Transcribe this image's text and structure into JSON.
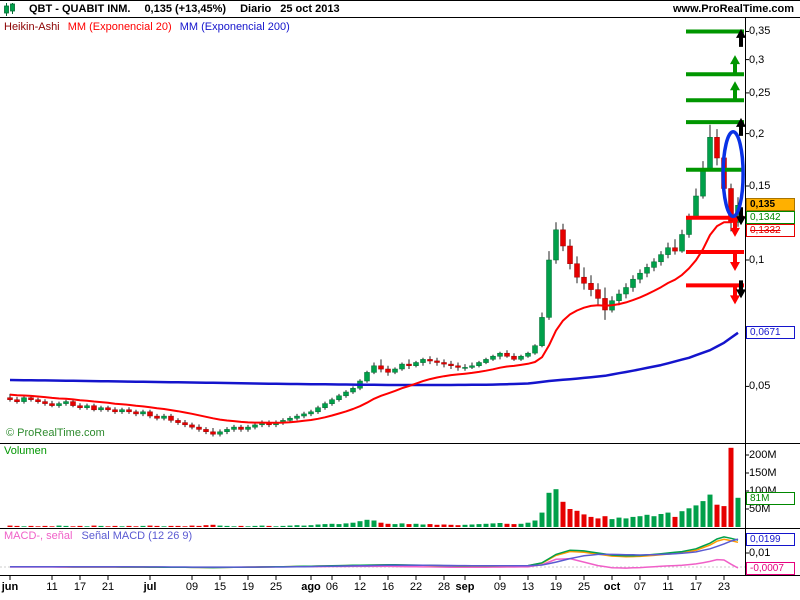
{
  "header": {
    "symbol": "QBT - QUABIT INM.",
    "price_change": "0,135 (+13,45%)",
    "period": "Diario",
    "date": "25 oct 2013",
    "site": "www.ProRealTime.com"
  },
  "main_legend": {
    "heikin": "Heikin-Ashi",
    "mm20": "MM (Exponencial 20)",
    "mm200": "MM (Exponencial 200)"
  },
  "watermark": "© ProRealTime.com",
  "volume_label": "Volumen",
  "macd_legend": {
    "part1": "MACD-, señal",
    "part2": "Señal MACD (12 26 9)"
  },
  "colors": {
    "up": "#00a04a",
    "up_border": "#006b31",
    "down": "#e60000",
    "down_border": "#9e0000",
    "wick": "#222222",
    "ema20": "#ff0000",
    "ema200": "#1414cc",
    "green_level": "#009600",
    "red_level": "#ff0000",
    "ellipse": "#0a32e6",
    "macd_pink": "#f060c8",
    "macd_blue": "#5a5ad2",
    "macd_green": "#00a04a",
    "macd_orange": "#ff9900"
  },
  "chart_data": {
    "type": "candlestick",
    "style": "Heikin-Ashi",
    "symbol": "QBT",
    "title": "QUABIT INM.",
    "timeframe": "Diario",
    "last_date": "25 oct 2013",
    "last_price": 0.135,
    "change_pct": "+13,45%",
    "price_scale": "log",
    "price_ticks": [
      {
        "label": "0,35",
        "v": 0.35
      },
      {
        "label": "0,3",
        "v": 0.3
      },
      {
        "label": "0,25",
        "v": 0.25
      },
      {
        "label": "0,2",
        "v": 0.2
      },
      {
        "label": "0,15",
        "v": 0.15
      },
      {
        "label": "0,1",
        "v": 0.1
      },
      {
        "label": "0,05",
        "v": 0.05
      }
    ],
    "x_ticks": [
      {
        "i": 1,
        "label": "jun",
        "bold": true
      },
      {
        "i": 7,
        "label": "11"
      },
      {
        "i": 11,
        "label": "17"
      },
      {
        "i": 15,
        "label": "21"
      },
      {
        "i": 21,
        "label": "jul",
        "bold": true
      },
      {
        "i": 27,
        "label": "09"
      },
      {
        "i": 31,
        "label": "15"
      },
      {
        "i": 35,
        "label": "19"
      },
      {
        "i": 39,
        "label": "25"
      },
      {
        "i": 44,
        "label": "ago",
        "bold": true
      },
      {
        "i": 47,
        "label": "06"
      },
      {
        "i": 51,
        "label": "12"
      },
      {
        "i": 55,
        "label": "16"
      },
      {
        "i": 59,
        "label": "22"
      },
      {
        "i": 63,
        "label": "28"
      },
      {
        "i": 66,
        "label": "sep",
        "bold": true
      },
      {
        "i": 71,
        "label": "09"
      },
      {
        "i": 75,
        "label": "13"
      },
      {
        "i": 79,
        "label": "19"
      },
      {
        "i": 83,
        "label": "25"
      },
      {
        "i": 87,
        "label": "oct",
        "bold": true
      },
      {
        "i": 91,
        "label": "07"
      },
      {
        "i": 95,
        "label": "11"
      },
      {
        "i": 99,
        "label": "17"
      },
      {
        "i": 103,
        "label": "23"
      }
    ],
    "candles": [
      [
        0.047,
        0.048,
        0.046,
        0.0465
      ],
      [
        0.0465,
        0.0472,
        0.0455,
        0.046
      ],
      [
        0.046,
        0.0475,
        0.0455,
        0.047
      ],
      [
        0.047,
        0.0476,
        0.046,
        0.0465
      ],
      [
        0.0465,
        0.047,
        0.0455,
        0.046
      ],
      [
        0.046,
        0.0466,
        0.045,
        0.0455
      ],
      [
        0.0455,
        0.0462,
        0.0446,
        0.045
      ],
      [
        0.045,
        0.046,
        0.0445,
        0.0455
      ],
      [
        0.0455,
        0.0465,
        0.045,
        0.046
      ],
      [
        0.046,
        0.0465,
        0.0446,
        0.045
      ],
      [
        0.045,
        0.0456,
        0.044,
        0.0445
      ],
      [
        0.0445,
        0.0455,
        0.044,
        0.045
      ],
      [
        0.045,
        0.0455,
        0.0436,
        0.044
      ],
      [
        0.044,
        0.045,
        0.0435,
        0.0445
      ],
      [
        0.0445,
        0.045,
        0.0435,
        0.044
      ],
      [
        0.044,
        0.0446,
        0.043,
        0.0435
      ],
      [
        0.0435,
        0.0445,
        0.043,
        0.044
      ],
      [
        0.044,
        0.0446,
        0.043,
        0.0435
      ],
      [
        0.0435,
        0.044,
        0.0425,
        0.043
      ],
      [
        0.043,
        0.044,
        0.0425,
        0.0435
      ],
      [
        0.0435,
        0.044,
        0.042,
        0.0425
      ],
      [
        0.0425,
        0.043,
        0.0415,
        0.042
      ],
      [
        0.042,
        0.043,
        0.0415,
        0.0425
      ],
      [
        0.0425,
        0.043,
        0.041,
        0.0415
      ],
      [
        0.0415,
        0.042,
        0.0405,
        0.041
      ],
      [
        0.041,
        0.0416,
        0.04,
        0.0405
      ],
      [
        0.0405,
        0.041,
        0.0395,
        0.04
      ],
      [
        0.04,
        0.0406,
        0.039,
        0.0395
      ],
      [
        0.0395,
        0.04,
        0.0385,
        0.039
      ],
      [
        0.039,
        0.0398,
        0.038,
        0.0385
      ],
      [
        0.0385,
        0.0395,
        0.038,
        0.039
      ],
      [
        0.039,
        0.04,
        0.0385,
        0.0395
      ],
      [
        0.0395,
        0.0405,
        0.039,
        0.04
      ],
      [
        0.04,
        0.0405,
        0.039,
        0.0395
      ],
      [
        0.0395,
        0.0405,
        0.039,
        0.04
      ],
      [
        0.04,
        0.041,
        0.0395,
        0.0405
      ],
      [
        0.0405,
        0.0415,
        0.04,
        0.041
      ],
      [
        0.041,
        0.0415,
        0.04,
        0.0405
      ],
      [
        0.0405,
        0.0415,
        0.04,
        0.041
      ],
      [
        0.041,
        0.042,
        0.0405,
        0.0415
      ],
      [
        0.0415,
        0.0425,
        0.041,
        0.042
      ],
      [
        0.042,
        0.043,
        0.0415,
        0.0425
      ],
      [
        0.0425,
        0.0435,
        0.042,
        0.043
      ],
      [
        0.043,
        0.044,
        0.0425,
        0.0435
      ],
      [
        0.0435,
        0.045,
        0.043,
        0.0445
      ],
      [
        0.0445,
        0.046,
        0.044,
        0.0455
      ],
      [
        0.0455,
        0.047,
        0.045,
        0.0465
      ],
      [
        0.0465,
        0.048,
        0.046,
        0.0475
      ],
      [
        0.0475,
        0.049,
        0.047,
        0.0485
      ],
      [
        0.0485,
        0.05,
        0.048,
        0.0495
      ],
      [
        0.0495,
        0.052,
        0.049,
        0.0515
      ],
      [
        0.0515,
        0.0545,
        0.051,
        0.054
      ],
      [
        0.054,
        0.057,
        0.0535,
        0.056
      ],
      [
        0.056,
        0.058,
        0.054,
        0.055
      ],
      [
        0.055,
        0.056,
        0.053,
        0.054
      ],
      [
        0.054,
        0.0555,
        0.0535,
        0.055
      ],
      [
        0.055,
        0.057,
        0.0545,
        0.0565
      ],
      [
        0.0565,
        0.058,
        0.055,
        0.056
      ],
      [
        0.056,
        0.0575,
        0.0555,
        0.057
      ],
      [
        0.057,
        0.0585,
        0.056,
        0.058
      ],
      [
        0.058,
        0.059,
        0.0565,
        0.0575
      ],
      [
        0.0575,
        0.0585,
        0.056,
        0.057
      ],
      [
        0.057,
        0.058,
        0.0555,
        0.0565
      ],
      [
        0.0565,
        0.0575,
        0.055,
        0.056
      ],
      [
        0.056,
        0.057,
        0.0545,
        0.0555
      ],
      [
        0.0555,
        0.0565,
        0.0545,
        0.0555
      ],
      [
        0.0555,
        0.057,
        0.055,
        0.056
      ],
      [
        0.056,
        0.0575,
        0.0555,
        0.057
      ],
      [
        0.057,
        0.0585,
        0.0565,
        0.058
      ],
      [
        0.058,
        0.0595,
        0.0575,
        0.059
      ],
      [
        0.059,
        0.0605,
        0.058,
        0.06
      ],
      [
        0.06,
        0.061,
        0.0585,
        0.059
      ],
      [
        0.059,
        0.06,
        0.0575,
        0.058
      ],
      [
        0.058,
        0.0595,
        0.0575,
        0.059
      ],
      [
        0.059,
        0.0605,
        0.0585,
        0.06
      ],
      [
        0.06,
        0.063,
        0.0595,
        0.0625
      ],
      [
        0.0625,
        0.075,
        0.062,
        0.073
      ],
      [
        0.073,
        0.105,
        0.072,
        0.1
      ],
      [
        0.1,
        0.123,
        0.098,
        0.118
      ],
      [
        0.118,
        0.122,
        0.105,
        0.108
      ],
      [
        0.108,
        0.112,
        0.095,
        0.098
      ],
      [
        0.098,
        0.102,
        0.088,
        0.091
      ],
      [
        0.091,
        0.096,
        0.085,
        0.088
      ],
      [
        0.088,
        0.092,
        0.082,
        0.085
      ],
      [
        0.085,
        0.088,
        0.078,
        0.081
      ],
      [
        0.081,
        0.086,
        0.072,
        0.076
      ],
      [
        0.076,
        0.082,
        0.075,
        0.08
      ],
      [
        0.08,
        0.085,
        0.078,
        0.083
      ],
      [
        0.083,
        0.088,
        0.081,
        0.086
      ],
      [
        0.086,
        0.092,
        0.084,
        0.09
      ],
      [
        0.09,
        0.095,
        0.088,
        0.093
      ],
      [
        0.093,
        0.098,
        0.091,
        0.096
      ],
      [
        0.096,
        0.101,
        0.094,
        0.099
      ],
      [
        0.099,
        0.105,
        0.097,
        0.103
      ],
      [
        0.103,
        0.11,
        0.101,
        0.107
      ],
      [
        0.107,
        0.112,
        0.103,
        0.105
      ],
      [
        0.105,
        0.118,
        0.104,
        0.115
      ],
      [
        0.115,
        0.129,
        0.113,
        0.127
      ],
      [
        0.127,
        0.148,
        0.125,
        0.142
      ],
      [
        0.142,
        0.172,
        0.14,
        0.165
      ],
      [
        0.165,
        0.21,
        0.163,
        0.196
      ],
      [
        0.196,
        0.205,
        0.168,
        0.175
      ],
      [
        0.175,
        0.18,
        0.14,
        0.148
      ],
      [
        0.148,
        0.152,
        0.117,
        0.123
      ],
      [
        0.123,
        0.141,
        0.12,
        0.135
      ]
    ],
    "volumes_millions": [
      4,
      3,
      2,
      3,
      2,
      3,
      2,
      4,
      3,
      2,
      3,
      2,
      4,
      3,
      2,
      3,
      2,
      3,
      2,
      3,
      4,
      3,
      2,
      3,
      3,
      2,
      4,
      3,
      5,
      6,
      4,
      3,
      2,
      3,
      2,
      3,
      4,
      3,
      2,
      3,
      4,
      5,
      4,
      5,
      7,
      8,
      9,
      8,
      10,
      12,
      16,
      20,
      18,
      12,
      9,
      8,
      10,
      8,
      9,
      7,
      8,
      6,
      7,
      6,
      5,
      6,
      7,
      8,
      9,
      10,
      11,
      9,
      8,
      9,
      12,
      18,
      40,
      95,
      105,
      70,
      50,
      45,
      35,
      28,
      24,
      30,
      22,
      26,
      24,
      28,
      30,
      34,
      30,
      36,
      40,
      28,
      44,
      52,
      60,
      72,
      90,
      62,
      58,
      220,
      81
    ],
    "ema20_period": 20,
    "ema200_period": 200,
    "ema200_keypoints": [
      [
        1,
        0.0518
      ],
      [
        20,
        0.0513
      ],
      [
        40,
        0.0507
      ],
      [
        55,
        0.0504
      ],
      [
        64,
        0.0504
      ],
      [
        70,
        0.0505
      ],
      [
        75,
        0.0508
      ],
      [
        78,
        0.0515
      ],
      [
        82,
        0.0522
      ],
      [
        86,
        0.053
      ],
      [
        90,
        0.0545
      ],
      [
        94,
        0.0562
      ],
      [
        98,
        0.0585
      ],
      [
        101,
        0.061
      ],
      [
        103,
        0.0635
      ],
      [
        105,
        0.0671
      ]
    ],
    "green_levels": [
      {
        "price": 0.35
      },
      {
        "price": 0.277,
        "arrow": true
      },
      {
        "price": 0.24,
        "arrow": true
      },
      {
        "price": 0.213
      },
      {
        "price": 0.164
      }
    ],
    "red_levels": [
      {
        "price": 0.126,
        "arrow": true
      },
      {
        "price": 0.1045,
        "arrow": true
      },
      {
        "price": 0.087,
        "arrow": true
      }
    ],
    "black_arrows": [
      {
        "price": 0.355,
        "dir": "up"
      },
      {
        "price": 0.218,
        "dir": "up"
      },
      {
        "price": 0.121,
        "dir": "down"
      },
      {
        "price": 0.081,
        "dir": "down"
      }
    ],
    "ellipse": {
      "center_index": 104.3,
      "center_price": 0.16,
      "price_low": 0.127,
      "price_high": 0.202
    },
    "volume_ticks": [
      {
        "label": "200M",
        "v": 200
      },
      {
        "label": "150M",
        "v": 150
      },
      {
        "label": "100M",
        "v": 100
      },
      {
        "label": "50M",
        "v": 50
      }
    ],
    "volume_badge": "81M",
    "volume_badge_value": 81,
    "macd": {
      "params": "12 26 9",
      "tick": {
        "label": "0,01",
        "v": 0.01
      },
      "macd_keypoints": [
        [
          1,
          0.0002
        ],
        [
          20,
          0
        ],
        [
          30,
          -0.0004
        ],
        [
          40,
          0.0002
        ],
        [
          50,
          0.0012
        ],
        [
          55,
          0.0016
        ],
        [
          60,
          0.0013
        ],
        [
          65,
          0.0008
        ],
        [
          70,
          0.0008
        ],
        [
          75,
          0.001
        ],
        [
          77,
          0.003
        ],
        [
          79,
          0.009
        ],
        [
          81,
          0.012
        ],
        [
          83,
          0.0115
        ],
        [
          85,
          0.01
        ],
        [
          87,
          0.0085
        ],
        [
          89,
          0.008
        ],
        [
          91,
          0.0082
        ],
        [
          93,
          0.009
        ],
        [
          95,
          0.01
        ],
        [
          97,
          0.011
        ],
        [
          99,
          0.013
        ],
        [
          101,
          0.017
        ],
        [
          102,
          0.02
        ],
        [
          103,
          0.0215
        ],
        [
          104,
          0.0205
        ],
        [
          105,
          0.0192
        ]
      ],
      "signal_keypoints": [
        [
          1,
          0.0002
        ],
        [
          20,
          0.0001
        ],
        [
          30,
          -0.0001
        ],
        [
          40,
          0
        ],
        [
          50,
          0.0008
        ],
        [
          55,
          0.0012
        ],
        [
          60,
          0.0012
        ],
        [
          65,
          0.001
        ],
        [
          70,
          0.0009
        ],
        [
          75,
          0.0009
        ],
        [
          77,
          0.0014
        ],
        [
          79,
          0.0035
        ],
        [
          81,
          0.006
        ],
        [
          83,
          0.008
        ],
        [
          85,
          0.009
        ],
        [
          87,
          0.009
        ],
        [
          89,
          0.0088
        ],
        [
          91,
          0.0086
        ],
        [
          93,
          0.0088
        ],
        [
          95,
          0.0092
        ],
        [
          97,
          0.0098
        ],
        [
          99,
          0.0108
        ],
        [
          101,
          0.013
        ],
        [
          103,
          0.0165
        ],
        [
          104,
          0.0185
        ],
        [
          105,
          0.0199
        ]
      ],
      "badges": {
        "signal": "0,0199",
        "hist": "-0,0007"
      },
      "signal_last": 0.0199,
      "hist_last": -0.0007
    },
    "badges": {
      "last": "0,135",
      "green": "0,1342",
      "red_struck": "0,1332",
      "ema200": "0,0671"
    },
    "badge_values": {
      "last": 0.135,
      "green": 0.1342,
      "red_struck": 0.1332,
      "ema200": 0.0671
    }
  }
}
